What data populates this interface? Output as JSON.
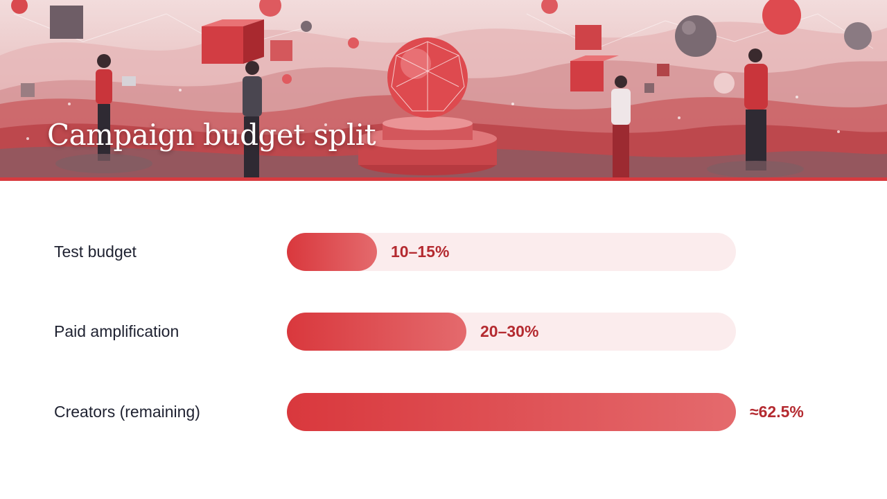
{
  "title": "Campaign budget split",
  "colors": {
    "accent": "#d83a3f",
    "track": "#fbeced",
    "value_text": "#b42a30",
    "label_text": "#1e2130"
  },
  "chart_data": {
    "type": "bar",
    "orientation": "horizontal",
    "categories": [
      "Test budget",
      "Paid amplification",
      "Creators (remaining)"
    ],
    "values": [
      12.5,
      25,
      62.5
    ],
    "value_labels": [
      "10–15%",
      "20–30%",
      "≈62.5%"
    ],
    "xlim": [
      0,
      62.5
    ],
    "grid": false
  }
}
